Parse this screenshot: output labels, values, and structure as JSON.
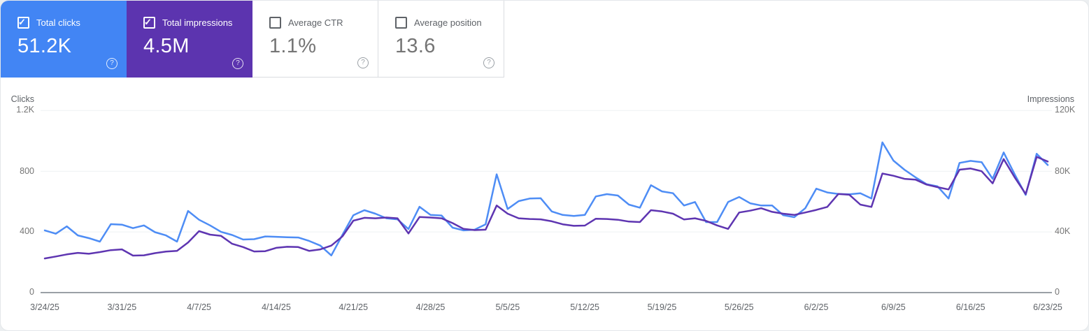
{
  "icons": {
    "check": "✓",
    "help": "?"
  },
  "cards": [
    {
      "label": "Total clicks",
      "value": "51.2K",
      "checked": true,
      "color": "#4285f4"
    },
    {
      "label": "Total impressions",
      "value": "4.5M",
      "checked": true,
      "color": "#5c34af"
    },
    {
      "label": "Average CTR",
      "value": "1.1%",
      "checked": false,
      "color": "#ffffff"
    },
    {
      "label": "Average position",
      "value": "13.6",
      "checked": false,
      "color": "#ffffff"
    }
  ],
  "chart": {
    "left_axis": {
      "title": "Clicks",
      "ticks": [
        "1.2K",
        "800",
        "400",
        "0"
      ]
    },
    "right_axis": {
      "title": "Impressions",
      "ticks": [
        "120K",
        "80K",
        "40K",
        "0"
      ]
    }
  },
  "chart_data": {
    "type": "line",
    "grid": "horizontal",
    "left_ylim": [
      0,
      1200
    ],
    "right_ylim": [
      0,
      120000
    ],
    "x_tick_labels": [
      "3/24/25",
      "3/31/25",
      "4/7/25",
      "4/14/25",
      "4/21/25",
      "4/28/25",
      "5/5/25",
      "5/12/25",
      "5/19/25",
      "5/26/25",
      "6/2/25",
      "6/9/25",
      "6/16/25",
      "6/23/25"
    ],
    "dates": [
      "3/24/25",
      "3/25/25",
      "3/26/25",
      "3/27/25",
      "3/28/25",
      "3/29/25",
      "3/30/25",
      "3/31/25",
      "4/1/25",
      "4/2/25",
      "4/3/25",
      "4/4/25",
      "4/5/25",
      "4/6/25",
      "4/7/25",
      "4/8/25",
      "4/9/25",
      "4/10/25",
      "4/11/25",
      "4/12/25",
      "4/13/25",
      "4/14/25",
      "4/15/25",
      "4/16/25",
      "4/17/25",
      "4/18/25",
      "4/19/25",
      "4/20/25",
      "4/21/25",
      "4/22/25",
      "4/23/25",
      "4/24/25",
      "4/25/25",
      "4/26/25",
      "4/27/25",
      "4/28/25",
      "4/29/25",
      "4/30/25",
      "5/1/25",
      "5/2/25",
      "5/3/25",
      "5/4/25",
      "5/5/25",
      "5/6/25",
      "5/7/25",
      "5/8/25",
      "5/9/25",
      "5/10/25",
      "5/11/25",
      "5/12/25",
      "5/13/25",
      "5/14/25",
      "5/15/25",
      "5/16/25",
      "5/17/25",
      "5/18/25",
      "5/19/25",
      "5/20/25",
      "5/21/25",
      "5/22/25",
      "5/23/25",
      "5/24/25",
      "5/25/25",
      "5/26/25",
      "5/27/25",
      "5/28/25",
      "5/29/25",
      "5/30/25",
      "5/31/25",
      "6/1/25",
      "6/2/25",
      "6/3/25",
      "6/4/25",
      "6/5/25",
      "6/6/25",
      "6/7/25",
      "6/8/25",
      "6/9/25",
      "6/10/25",
      "6/11/25",
      "6/12/25",
      "6/13/25",
      "6/14/25",
      "6/15/25",
      "6/16/25",
      "6/17/25",
      "6/18/25",
      "6/19/25",
      "6/20/25",
      "6/21/25",
      "6/22/25",
      "6/23/25"
    ],
    "series": [
      {
        "name": "Total clicks",
        "axis": "left",
        "color": "#4e8df5",
        "values": [
          410,
          388,
          437,
          377,
          359,
          336,
          451,
          448,
          425,
          443,
          398,
          377,
          336,
          538,
          480,
          443,
          400,
          380,
          350,
          352,
          370,
          368,
          365,
          363,
          340,
          310,
          245,
          380,
          510,
          543,
          520,
          490,
          483,
          419,
          566,
          512,
          508,
          428,
          410,
          415,
          450,
          780,
          551,
          603,
          620,
          622,
          535,
          512,
          505,
          512,
          634,
          649,
          640,
          580,
          560,
          708,
          667,
          655,
          574,
          597,
          465,
          465,
          597,
          630,
          589,
          574,
          574,
          510,
          497,
          556,
          685,
          660,
          650,
          648,
          655,
          620,
          990,
          870,
          810,
          760,
          715,
          700,
          620,
          855,
          868,
          860,
          750,
          924,
          780,
          644,
          915,
          841
        ]
      },
      {
        "name": "Total impressions",
        "axis": "right",
        "color": "#5e35b1",
        "values": [
          22500,
          23800,
          25200,
          26200,
          25600,
          26700,
          28000,
          28500,
          24400,
          24600,
          26000,
          27000,
          27500,
          33000,
          40500,
          38200,
          37400,
          32200,
          30000,
          27100,
          27300,
          29500,
          30200,
          30000,
          27500,
          28500,
          31000,
          37000,
          47400,
          49300,
          49000,
          49500,
          49000,
          39000,
          49800,
          49500,
          49000,
          45800,
          42000,
          41200,
          41500,
          57400,
          52000,
          49000,
          48500,
          48300,
          47000,
          45000,
          44000,
          44200,
          48700,
          48500,
          48000,
          46800,
          46500,
          54300,
          53500,
          52000,
          48200,
          49000,
          47300,
          44300,
          42000,
          52800,
          54000,
          55600,
          53200,
          52000,
          51200,
          52800,
          54500,
          56500,
          65000,
          64500,
          58000,
          56500,
          78500,
          77000,
          75000,
          74500,
          71200,
          69500,
          68000,
          81000,
          81800,
          80000,
          72000,
          88000,
          76000,
          65000,
          89500,
          86400
        ]
      }
    ]
  }
}
